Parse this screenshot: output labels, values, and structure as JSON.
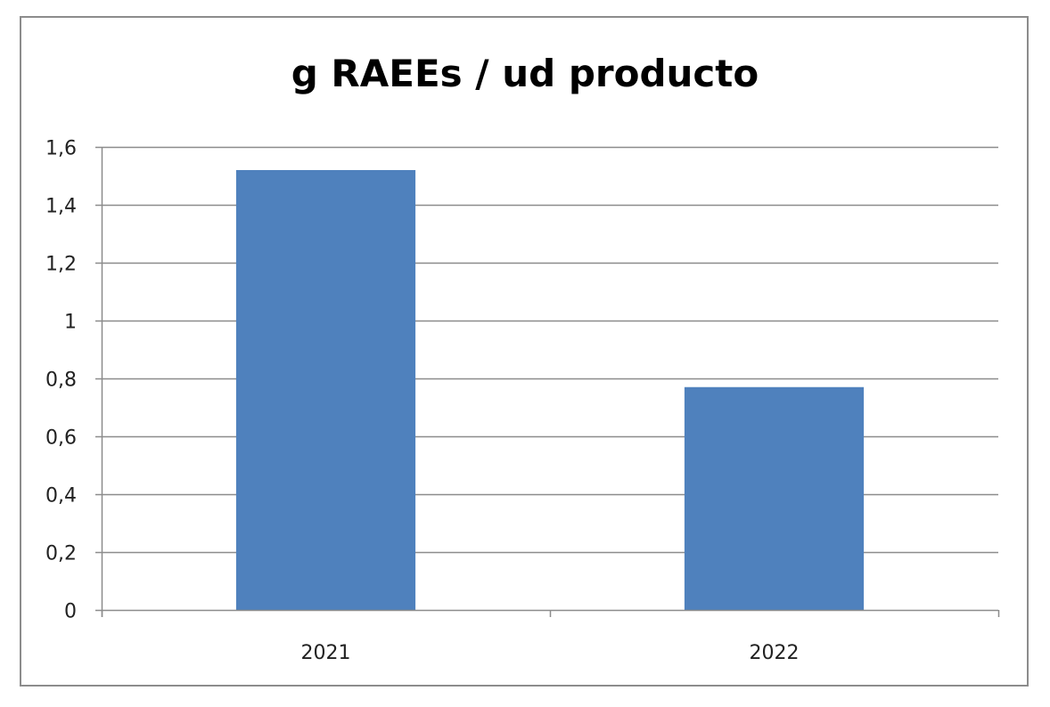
{
  "chart_data": {
    "type": "bar",
    "title": "g RAEEs / ud producto",
    "categories": [
      "2021",
      "2022"
    ],
    "values": [
      1.52,
      0.77
    ],
    "ylim": [
      0,
      1.6
    ],
    "yticks": [
      "0",
      "0,2",
      "0,4",
      "0,6",
      "0,8",
      "1",
      "1,2",
      "1,4",
      "1,6"
    ],
    "ytick_values": [
      0,
      0.2,
      0.4,
      0.6,
      0.8,
      1.0,
      1.2,
      1.4,
      1.6
    ],
    "xlabel": "",
    "ylabel": "",
    "grid": true,
    "legend": "none",
    "bar_color": "#4f81bd"
  }
}
